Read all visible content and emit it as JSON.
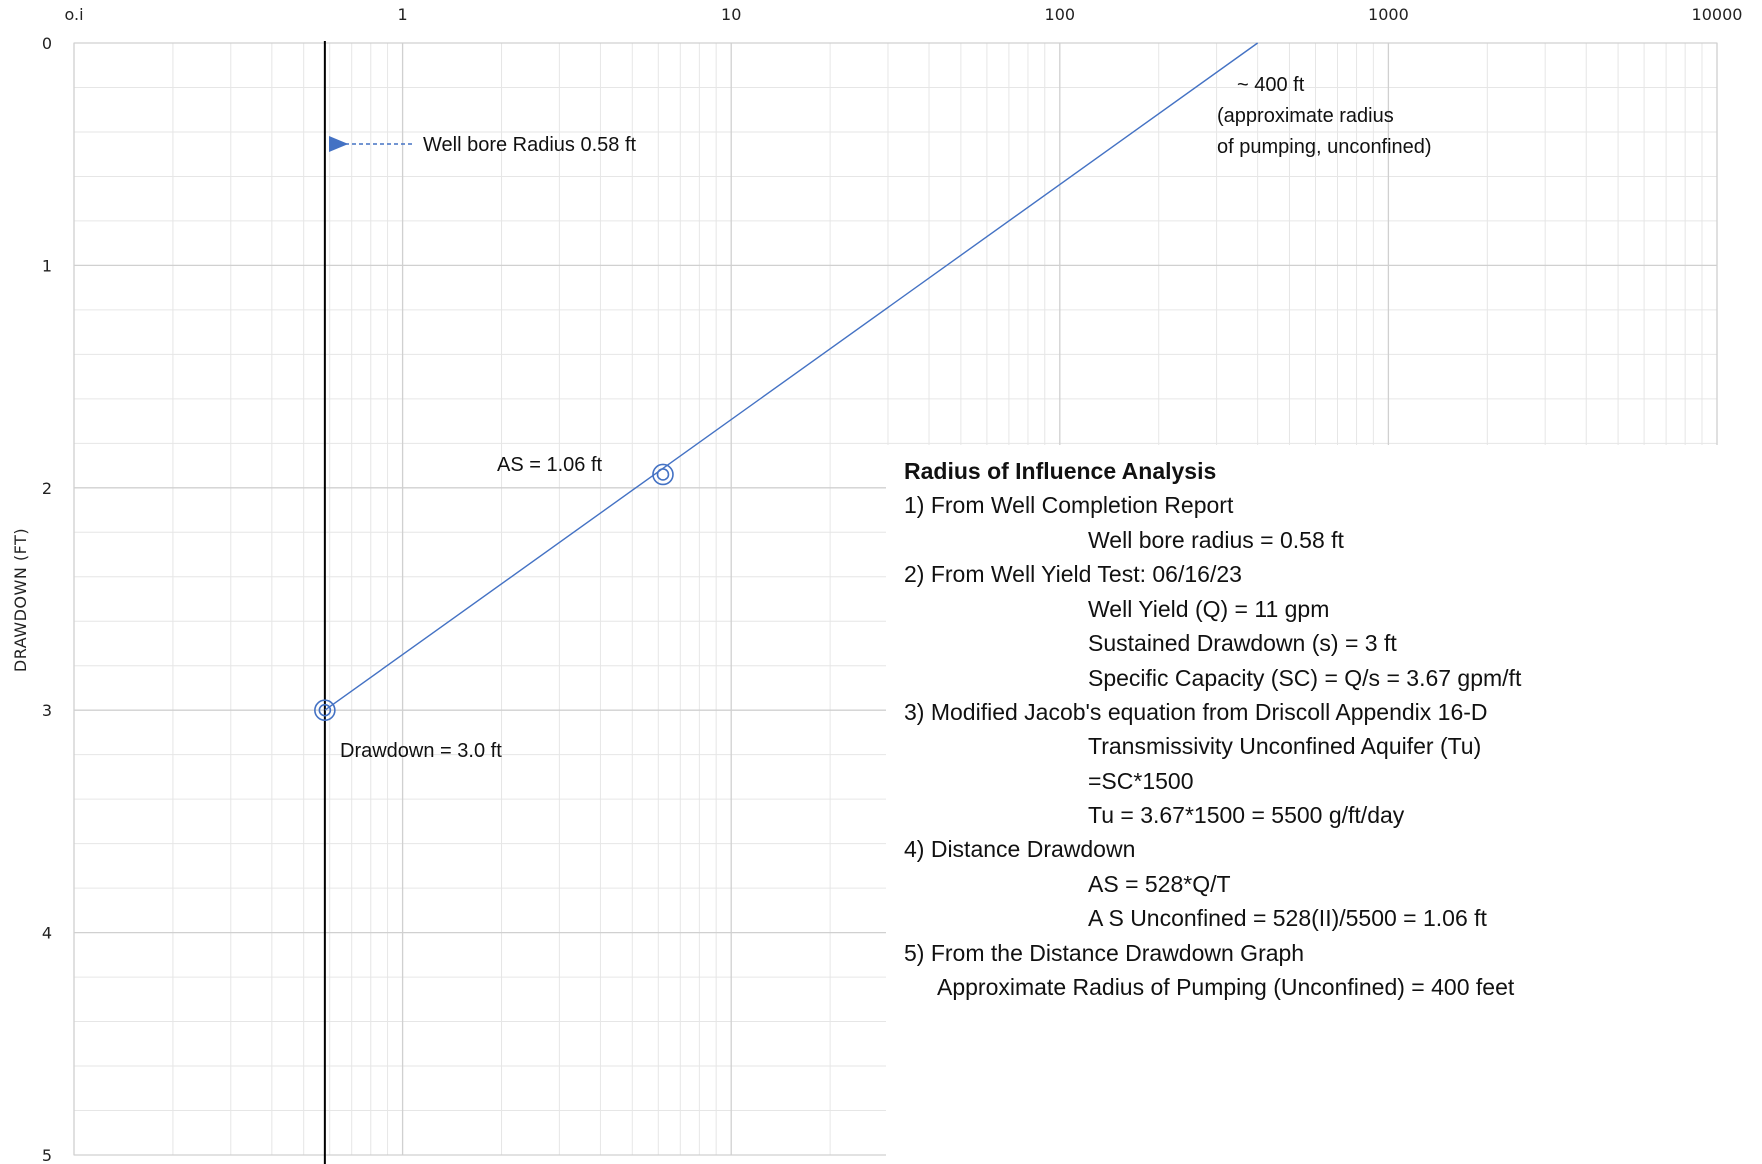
{
  "chart_data": {
    "type": "line",
    "x_scale": "log",
    "xlim": [
      0.1,
      10000
    ],
    "ylim": [
      5,
      0
    ],
    "ylabel": "DRAWDOWN (FT)",
    "x_tick_labels": [
      "o.i",
      "1",
      "10",
      "100",
      "1000",
      "10000"
    ],
    "x_tick_values": [
      0.1,
      1,
      10,
      100,
      1000,
      10000
    ],
    "y_tick_labels": [
      "0",
      "1",
      "2",
      "3",
      "4",
      "5"
    ],
    "y_tick_values": [
      0,
      1,
      2,
      3,
      4,
      5
    ],
    "grid": true,
    "series": [
      {
        "x": [
          0.58,
          400
        ],
        "y": [
          3.0,
          0.0
        ],
        "color": "#4472c4"
      }
    ],
    "points": [
      {
        "x": 0.58,
        "y": 3.0,
        "label": "Drawdown = 3.0 ft"
      },
      {
        "x": 6.2,
        "y": 1.94,
        "label": "AS = 1.06 ft"
      }
    ],
    "vertical_line": {
      "x": 0.58,
      "color": "#000000"
    },
    "annotations": {
      "well_bore": "Well bore Radius 0.58 ft",
      "as_label": "AS = 1.06 ft",
      "drawdown_label": "Drawdown = 3.0 ft",
      "radius_line1": "~  400 ft",
      "radius_line2": "(approximate radius",
      "radius_line3": "of pumping, unconfined)"
    }
  },
  "panel": {
    "title": "Radius of Influence Analysis",
    "lines": [
      "1) From Well Completion Report",
      "Well bore radius = 0.58 ft",
      "2) From Well Yield Test: 06/16/23",
      "Well Yield (Q) = 11 gpm",
      "Sustained Drawdown (s) = 3 ft",
      "Specific Capacity (SC) = Q/s = 3.67 gpm/ft",
      "3) Modified Jacob's equation from Driscoll Appendix 16-D",
      "Transmissivity Unconfined Aquifer (Tu)",
      "=SC*1500",
      "Tu = 3.67*1500 = 5500 g/ft/day",
      "4) Distance Drawdown",
      "AS = 528*Q/T",
      "A S Unconfined = 528(II)/5500 = 1.06 ft",
      "5) From the Distance Drawdown Graph",
      "Approximate Radius of Pumping (Unconfined) = 400 feet"
    ]
  },
  "colors": {
    "series": "#4472c4",
    "major_grid": "#d0d0d0",
    "minor_grid": "#e6e6e6",
    "vertical_line": "#000000"
  }
}
